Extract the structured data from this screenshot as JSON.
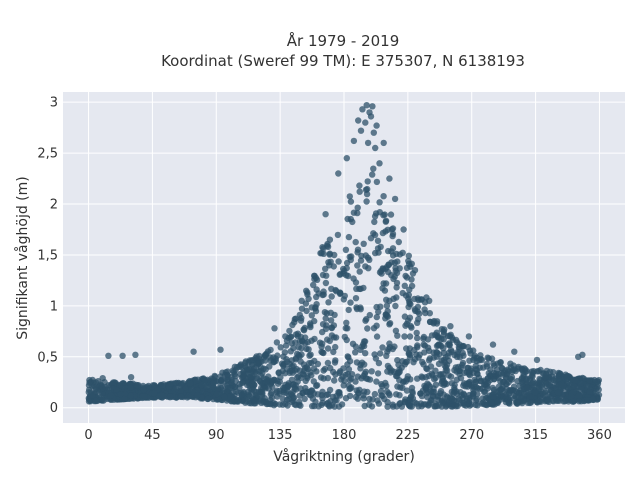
{
  "chart_data": {
    "type": "scatter",
    "title": [
      "År 1979 - 2019",
      "Koordinat (Sweref 99 TM): E 375307, N 6138193"
    ],
    "xlabel": "Vågriktning (grader)",
    "ylabel": "Signifikant våghöjd (m)",
    "xlim": [
      -18,
      378
    ],
    "ylim": [
      -0.15,
      3.1
    ],
    "xticks": [
      0,
      45,
      90,
      135,
      180,
      225,
      270,
      315,
      360
    ],
    "xtick_labels": [
      "0",
      "45",
      "90",
      "135",
      "180",
      "225",
      "270",
      "315",
      "360"
    ],
    "yticks": [
      0,
      0.5,
      1,
      1.5,
      2,
      2.5,
      3
    ],
    "ytick_labels": [
      "0",
      "0,5",
      "1",
      "1,5",
      "2",
      "2,5",
      "3"
    ],
    "grid": true,
    "marker_color": "#2e5269",
    "plot_background": "#e5e8f0",
    "envelope": {
      "x": [
        0,
        20,
        45,
        70,
        90,
        110,
        125,
        135,
        145,
        155,
        165,
        175,
        185,
        195,
        200,
        205,
        215,
        225,
        235,
        245,
        255,
        265,
        275,
        285,
        300,
        315,
        330,
        345,
        360
      ],
      "ymin": [
        0.06,
        0.08,
        0.1,
        0.1,
        0.08,
        0.05,
        0.03,
        0.02,
        0.02,
        0.01,
        0.01,
        0.01,
        0.01,
        0.01,
        0.01,
        0.01,
        0.01,
        0.01,
        0.01,
        0.01,
        0.01,
        0.02,
        0.02,
        0.03,
        0.04,
        0.05,
        0.06,
        0.06,
        0.08
      ],
      "ymax": [
        0.28,
        0.25,
        0.22,
        0.26,
        0.32,
        0.45,
        0.55,
        0.7,
        0.9,
        1.2,
        1.6,
        1.85,
        2.1,
        2.35,
        2.45,
        2.2,
        1.9,
        1.55,
        1.2,
        0.9,
        0.72,
        0.62,
        0.55,
        0.5,
        0.42,
        0.38,
        0.35,
        0.3,
        0.28
      ]
    },
    "outliers": [
      {
        "x": 14,
        "y": 0.51
      },
      {
        "x": 24,
        "y": 0.51
      },
      {
        "x": 33,
        "y": 0.52
      },
      {
        "x": 74,
        "y": 0.55
      },
      {
        "x": 93,
        "y": 0.57
      },
      {
        "x": 10,
        "y": 0.29
      },
      {
        "x": 30,
        "y": 0.3
      },
      {
        "x": 345,
        "y": 0.5
      },
      {
        "x": 348,
        "y": 0.52
      },
      {
        "x": 300,
        "y": 0.55
      },
      {
        "x": 316,
        "y": 0.47
      },
      {
        "x": 131,
        "y": 0.78
      },
      {
        "x": 167,
        "y": 1.9
      },
      {
        "x": 176,
        "y": 2.3
      },
      {
        "x": 182,
        "y": 2.45
      },
      {
        "x": 187,
        "y": 2.62
      },
      {
        "x": 190,
        "y": 2.82
      },
      {
        "x": 192,
        "y": 2.72
      },
      {
        "x": 193,
        "y": 2.93
      },
      {
        "x": 195,
        "y": 2.8
      },
      {
        "x": 196,
        "y": 2.97
      },
      {
        "x": 197,
        "y": 2.6
      },
      {
        "x": 198,
        "y": 2.9
      },
      {
        "x": 199,
        "y": 2.86
      },
      {
        "x": 200,
        "y": 2.96
      },
      {
        "x": 201,
        "y": 2.7
      },
      {
        "x": 202,
        "y": 2.55
      },
      {
        "x": 203,
        "y": 2.77
      },
      {
        "x": 205,
        "y": 2.4
      },
      {
        "x": 208,
        "y": 2.6
      },
      {
        "x": 212,
        "y": 2.25
      },
      {
        "x": 216,
        "y": 2.05
      },
      {
        "x": 222,
        "y": 1.75
      },
      {
        "x": 230,
        "y": 1.35
      },
      {
        "x": 240,
        "y": 1.05
      },
      {
        "x": 255,
        "y": 0.8
      },
      {
        "x": 268,
        "y": 0.7
      },
      {
        "x": 285,
        "y": 0.62
      }
    ]
  }
}
